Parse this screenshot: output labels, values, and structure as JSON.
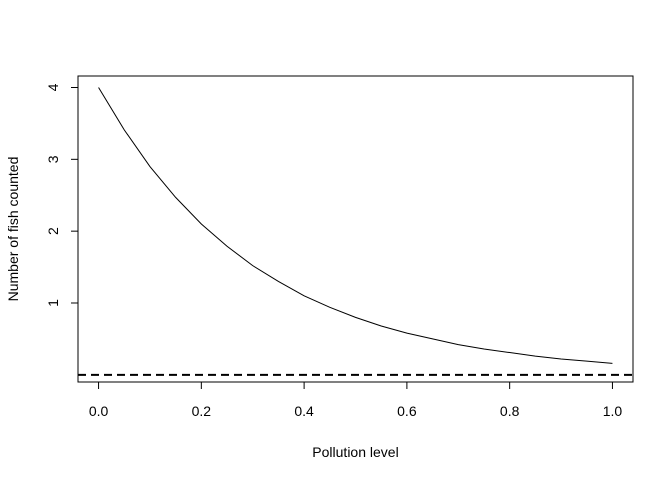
{
  "chart_data": {
    "type": "line",
    "xlabel": "Pollution level",
    "ylabel": "Number of fish counted",
    "xlim": [
      -0.04,
      1.04
    ],
    "ylim": [
      -0.1,
      4.16
    ],
    "x_ticks": [
      0.0,
      0.2,
      0.4,
      0.6,
      0.8,
      1.0
    ],
    "x_tick_labels": [
      "0.0",
      "0.2",
      "0.4",
      "0.6",
      "0.8",
      "1.0"
    ],
    "y_ticks": [
      1,
      2,
      3,
      4
    ],
    "y_tick_labels": [
      "1",
      "2",
      "3",
      "4"
    ],
    "grid": false,
    "legend": "none",
    "series": [
      {
        "line_style": "solid",
        "color": "#000000",
        "x": [
          0.0,
          0.05,
          0.1,
          0.15,
          0.2,
          0.25,
          0.3,
          0.35,
          0.4,
          0.45,
          0.5,
          0.55,
          0.6,
          0.65,
          0.7,
          0.75,
          0.8,
          0.85,
          0.9,
          0.95,
          1.0
        ],
        "y": [
          4.0,
          3.41,
          2.9,
          2.47,
          2.1,
          1.79,
          1.52,
          1.3,
          1.1,
          0.94,
          0.8,
          0.68,
          0.58,
          0.5,
          0.42,
          0.36,
          0.31,
          0.26,
          0.22,
          0.19,
          0.16
        ]
      },
      {
        "line_style": "dashed",
        "color": "#000000",
        "x": [
          -0.04,
          1.04
        ],
        "y": [
          0,
          0
        ]
      }
    ]
  }
}
